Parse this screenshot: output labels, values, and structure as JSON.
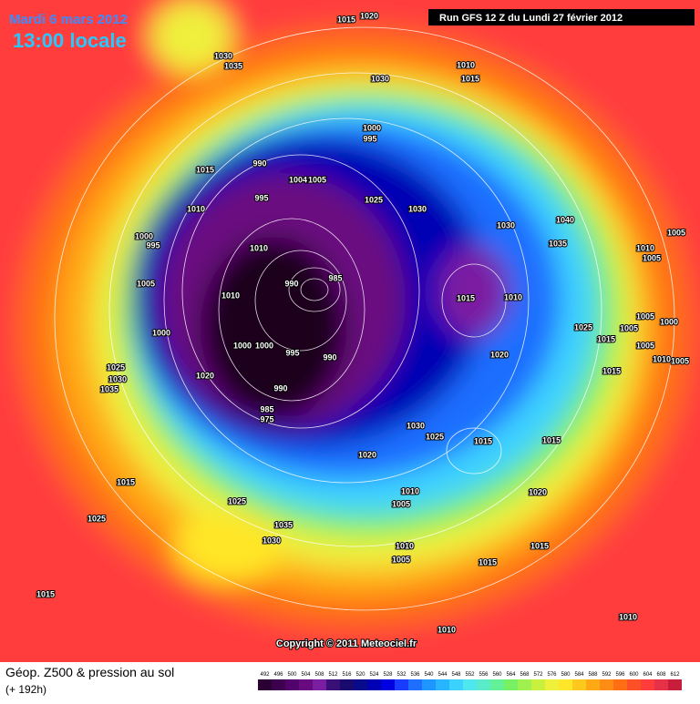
{
  "header": {
    "date": "Mardi 6 mars 2012",
    "time": "13:00 locale",
    "run": "Run GFS 12 Z du Lundi 27 février 2012"
  },
  "copyright": "Copyright © 2011 Meteociel.fr",
  "legend": {
    "title": "Géop. Z500 & pression au sol",
    "subtitle": "(+ 192h)",
    "values": [
      492,
      496,
      500,
      504,
      508,
      512,
      516,
      520,
      524,
      528,
      532,
      536,
      540,
      544,
      548,
      552,
      556,
      560,
      564,
      568,
      572,
      576,
      580,
      584,
      588,
      592,
      596,
      600,
      604,
      608,
      612
    ],
    "colors": [
      "#2b0033",
      "#3d004d",
      "#52006b",
      "#6a0a80",
      "#7b1fa2",
      "#3a1078",
      "#1a0a6e",
      "#0a0a8c",
      "#0000b4",
      "#0000e0",
      "#1a3cff",
      "#1e6eff",
      "#1e96ff",
      "#28b4ff",
      "#3cd2ff",
      "#50e6f0",
      "#5aebc8",
      "#64f096",
      "#78f064",
      "#a0f050",
      "#c8f03c",
      "#f0f03c",
      "#ffe628",
      "#ffc81e",
      "#ffaa14",
      "#ff8c14",
      "#ff6e14",
      "#ff5028",
      "#ff3c3c",
      "#e63246",
      "#c81e3c"
    ]
  },
  "isobar_labels": [
    1015,
    1020,
    1030,
    1035,
    1010,
    1015,
    1030,
    1000,
    995,
    1015,
    990,
    1004,
    1005,
    995,
    1025,
    1030,
    1010,
    1030,
    1040,
    1000,
    995,
    1035,
    1010,
    1010,
    1005,
    1005,
    990,
    985,
    1005,
    1010,
    1015,
    1010,
    1000,
    1025,
    1005,
    1005,
    1000,
    1015,
    1000,
    1005,
    1000,
    995,
    990,
    1020,
    1010,
    1005,
    1020,
    1015,
    1025,
    1030,
    1035,
    990,
    985,
    975,
    1030,
    1025,
    1015,
    1015,
    1020,
    1010,
    1005,
    1020,
    1015,
    1025,
    1025,
    1035,
    1030,
    1010,
    1015,
    1005,
    1015,
    1015,
    1010,
    1010
  ]
}
